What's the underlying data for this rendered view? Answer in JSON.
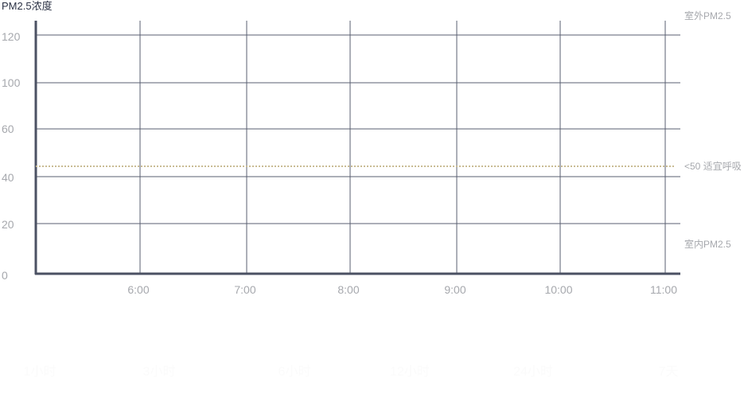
{
  "chart_data": {
    "type": "line",
    "title": "PM2.5浓度",
    "y_ticks": [
      "120",
      "100",
      "60",
      "40",
      "20",
      "0"
    ],
    "x_ticks": [
      "6:00",
      "7:00",
      "8:00",
      "9:00",
      "10:00",
      "11:00"
    ],
    "threshold": {
      "value": 45,
      "label": "<50 适宜呼吸",
      "color": "#c9bc95",
      "style": "dotted"
    },
    "right_labels": {
      "outdoor": "室外PM2.5",
      "indoor": "室内PM2.5"
    },
    "series": [],
    "grid": true,
    "colors": {
      "axis": "#4b5163",
      "grid": "#5a5f70",
      "text": "#a6a8ad",
      "title": "#2b3245"
    }
  },
  "footer": {
    "faded_labels": [
      "1小时",
      "3小时",
      "6小时",
      "12小时",
      "24小时",
      "7天"
    ]
  }
}
